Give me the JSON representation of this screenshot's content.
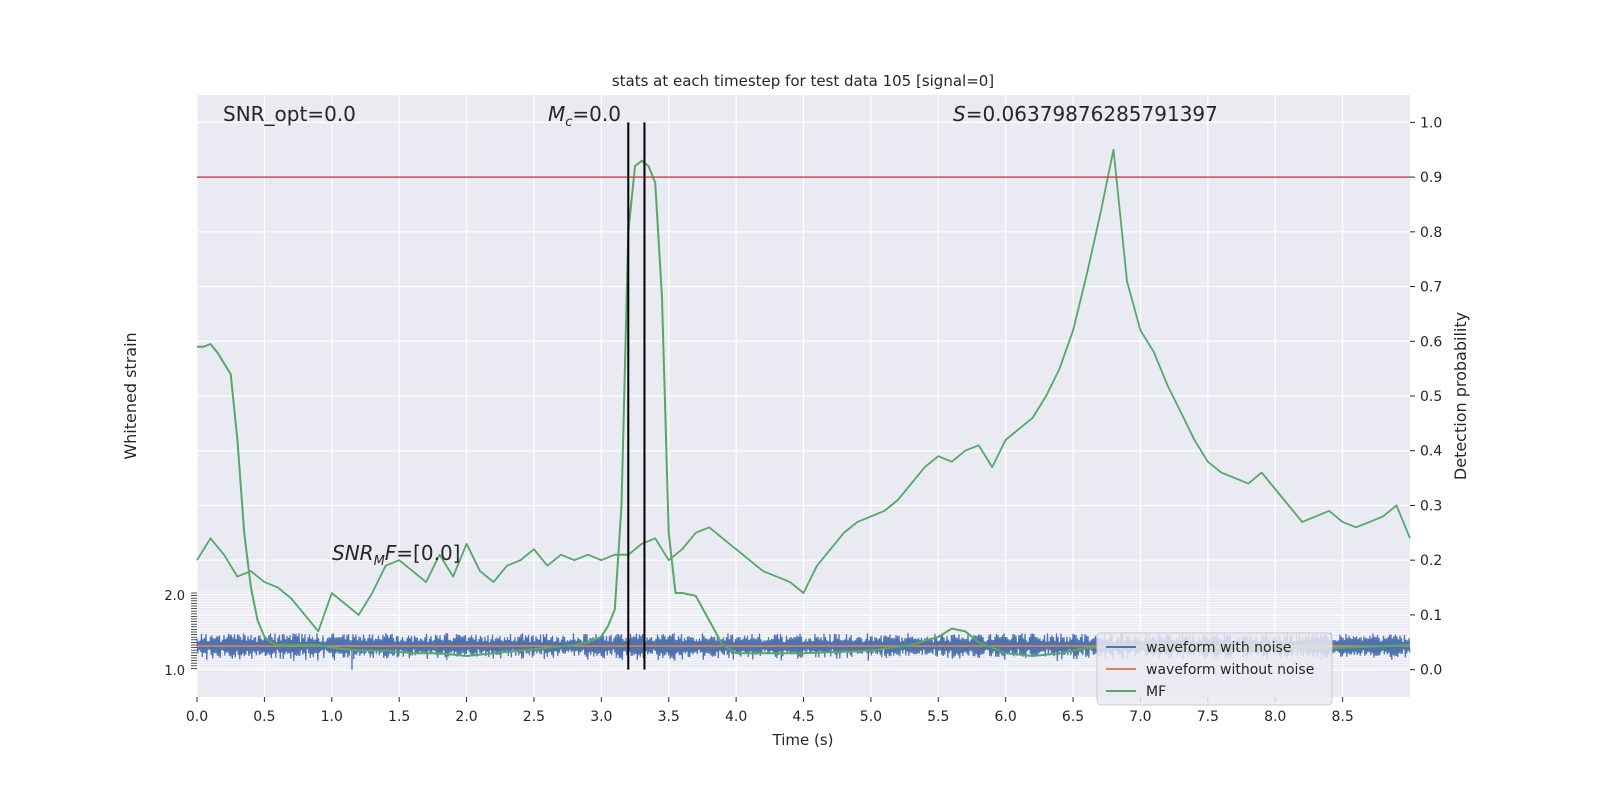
{
  "chart_data": {
    "type": "line",
    "title": "stats at each timestep for test data 105 [signal=0]",
    "xlabel": "Time (s)",
    "ylabel_left": "Whitened strain",
    "ylabel_right": "Detection probability",
    "xlim": [
      0.0,
      9.0
    ],
    "ylim_right": [
      -0.05,
      1.05
    ],
    "x_ticks": [
      "0.0",
      "0.5",
      "1.0",
      "1.5",
      "2.0",
      "2.5",
      "3.0",
      "3.5",
      "4.0",
      "4.5",
      "5.0",
      "5.5",
      "6.0",
      "6.5",
      "7.0",
      "7.5",
      "8.0",
      "8.5"
    ],
    "y_ticks_right": [
      "0.0",
      "0.1",
      "0.2",
      "0.3",
      "0.4",
      "0.5",
      "0.6",
      "0.7",
      "0.8",
      "0.9",
      "1.0"
    ],
    "left_axis_tick_labels": [
      "2.0",
      "1.0"
    ],
    "grid": true,
    "legend_position": "lower-right",
    "threshold": 0.9,
    "vertical_markers": [
      3.2,
      3.32
    ],
    "annotations": {
      "snr_opt": "SNR_opt=0.0",
      "mc": "M_c=0.0",
      "s": "S=0.06379876285791397",
      "snr_mf": "SNR_MF=[0.0]"
    },
    "series": [
      {
        "name": "waveform with noise",
        "color": "#4c72b0",
        "note_values": "whitened noise, amplitude band between approx 0.03 and 0.065 on the probability axis"
      },
      {
        "name": "waveform without noise",
        "color": "#dd8452",
        "level": 0.043
      },
      {
        "name": "MF",
        "color": "#55a868",
        "x": [
          0.0,
          0.05,
          0.1,
          0.15,
          0.2,
          0.25,
          0.3,
          0.35,
          0.4,
          0.45,
          0.5,
          0.55,
          0.6,
          0.7,
          0.8,
          0.9,
          1.0,
          1.2,
          1.4,
          1.6,
          1.8,
          2.0,
          2.2,
          2.4,
          2.6,
          2.8,
          2.9,
          3.0,
          3.05,
          3.1,
          3.15,
          3.2,
          3.25,
          3.3,
          3.35,
          3.4,
          3.45,
          3.5,
          3.55,
          3.6,
          3.7,
          3.8,
          3.9,
          4.0,
          4.5,
          5.0,
          5.3,
          5.5,
          5.6,
          5.7,
          5.8,
          6.0,
          6.2,
          6.4,
          6.6,
          6.8,
          7.0,
          7.5,
          8.0,
          8.5,
          9.0
        ],
        "y": [
          0.59,
          0.59,
          0.595,
          0.58,
          0.56,
          0.54,
          0.42,
          0.25,
          0.15,
          0.09,
          0.06,
          0.05,
          0.045,
          0.045,
          0.045,
          0.045,
          0.04,
          0.035,
          0.035,
          0.03,
          0.03,
          0.025,
          0.03,
          0.035,
          0.04,
          0.045,
          0.05,
          0.06,
          0.08,
          0.11,
          0.3,
          0.8,
          0.92,
          0.93,
          0.92,
          0.89,
          0.68,
          0.25,
          0.14,
          0.14,
          0.135,
          0.09,
          0.045,
          0.03,
          0.03,
          0.035,
          0.045,
          0.06,
          0.075,
          0.07,
          0.05,
          0.03,
          0.025,
          0.03,
          0.04,
          0.04,
          0.04,
          0.04,
          0.04,
          0.04,
          0.045
        ]
      },
      {
        "name": "",
        "color": "#55a868",
        "x": [
          0.0,
          0.1,
          0.2,
          0.3,
          0.4,
          0.5,
          0.6,
          0.7,
          0.8,
          0.9,
          1.0,
          1.1,
          1.2,
          1.3,
          1.4,
          1.5,
          1.6,
          1.7,
          1.8,
          1.9,
          2.0,
          2.1,
          2.2,
          2.3,
          2.4,
          2.5,
          2.6,
          2.7,
          2.8,
          2.9,
          3.0,
          3.1,
          3.2,
          3.3,
          3.4,
          3.5,
          3.6,
          3.7,
          3.8,
          3.9,
          4.0,
          4.1,
          4.2,
          4.3,
          4.4,
          4.5,
          4.6,
          4.7,
          4.8,
          4.9,
          5.0,
          5.1,
          5.2,
          5.3,
          5.4,
          5.5,
          5.6,
          5.7,
          5.8,
          5.9,
          6.0,
          6.1,
          6.2,
          6.3,
          6.4,
          6.5,
          6.6,
          6.7,
          6.8,
          6.9,
          7.0,
          7.1,
          7.2,
          7.3,
          7.4,
          7.5,
          7.6,
          7.7,
          7.8,
          7.9,
          8.0,
          8.1,
          8.2,
          8.3,
          8.4,
          8.5,
          8.6,
          8.7,
          8.8,
          8.9,
          9.0
        ],
        "y": [
          0.2,
          0.24,
          0.21,
          0.17,
          0.18,
          0.16,
          0.15,
          0.13,
          0.1,
          0.07,
          0.14,
          0.12,
          0.1,
          0.14,
          0.19,
          0.2,
          0.18,
          0.16,
          0.21,
          0.17,
          0.23,
          0.18,
          0.16,
          0.19,
          0.2,
          0.22,
          0.19,
          0.21,
          0.2,
          0.21,
          0.2,
          0.21,
          0.21,
          0.23,
          0.24,
          0.2,
          0.22,
          0.25,
          0.26,
          0.24,
          0.22,
          0.2,
          0.18,
          0.17,
          0.16,
          0.14,
          0.19,
          0.22,
          0.25,
          0.27,
          0.28,
          0.29,
          0.31,
          0.34,
          0.37,
          0.39,
          0.38,
          0.4,
          0.41,
          0.37,
          0.42,
          0.44,
          0.46,
          0.5,
          0.55,
          0.62,
          0.72,
          0.83,
          0.95,
          0.71,
          0.62,
          0.58,
          0.52,
          0.47,
          0.42,
          0.38,
          0.36,
          0.35,
          0.34,
          0.36,
          0.33,
          0.3,
          0.27,
          0.28,
          0.29,
          0.27,
          0.26,
          0.27,
          0.28,
          0.3,
          0.24
        ]
      }
    ]
  }
}
